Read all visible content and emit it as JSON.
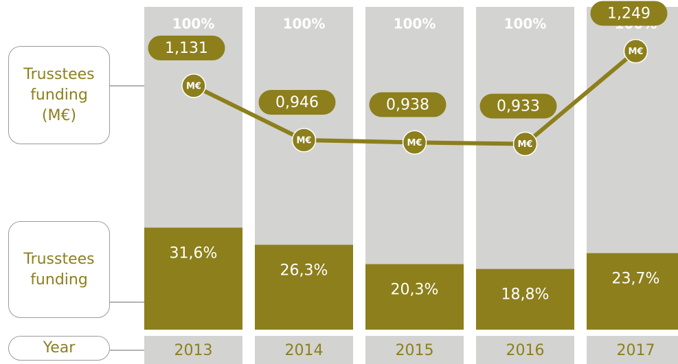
{
  "chart_data": {
    "type": "bar",
    "x_label": "Year",
    "categories": [
      "2013",
      "2014",
      "2015",
      "2016",
      "2017"
    ],
    "totals": [
      100,
      100,
      100,
      100,
      100
    ],
    "total_labels": [
      "100%",
      "100%",
      "100%",
      "100%",
      "100%"
    ],
    "total_color": "#d3d3d1",
    "series": [
      {
        "name": "Trusstees funding",
        "type": "bar",
        "color": "#8c7f1c",
        "values": [
          31.6,
          26.3,
          20.3,
          18.8,
          23.7
        ],
        "value_labels": [
          "31,6%",
          "26,3%",
          "20,3%",
          "18,8%",
          "23,7%"
        ]
      },
      {
        "name": "Trusstees funding (M€)",
        "type": "line",
        "axis": "y2",
        "color": "#8c7f1c",
        "values": [
          1.131,
          0.946,
          0.938,
          0.933,
          1.249
        ],
        "value_labels": [
          "1,131",
          "0,946",
          "0,938",
          "0,933",
          "1,249"
        ],
        "marker_label": "M€"
      }
    ],
    "ylim": [
      0,
      100
    ],
    "y2lim": [
      0.3,
      1.4
    ]
  }
}
